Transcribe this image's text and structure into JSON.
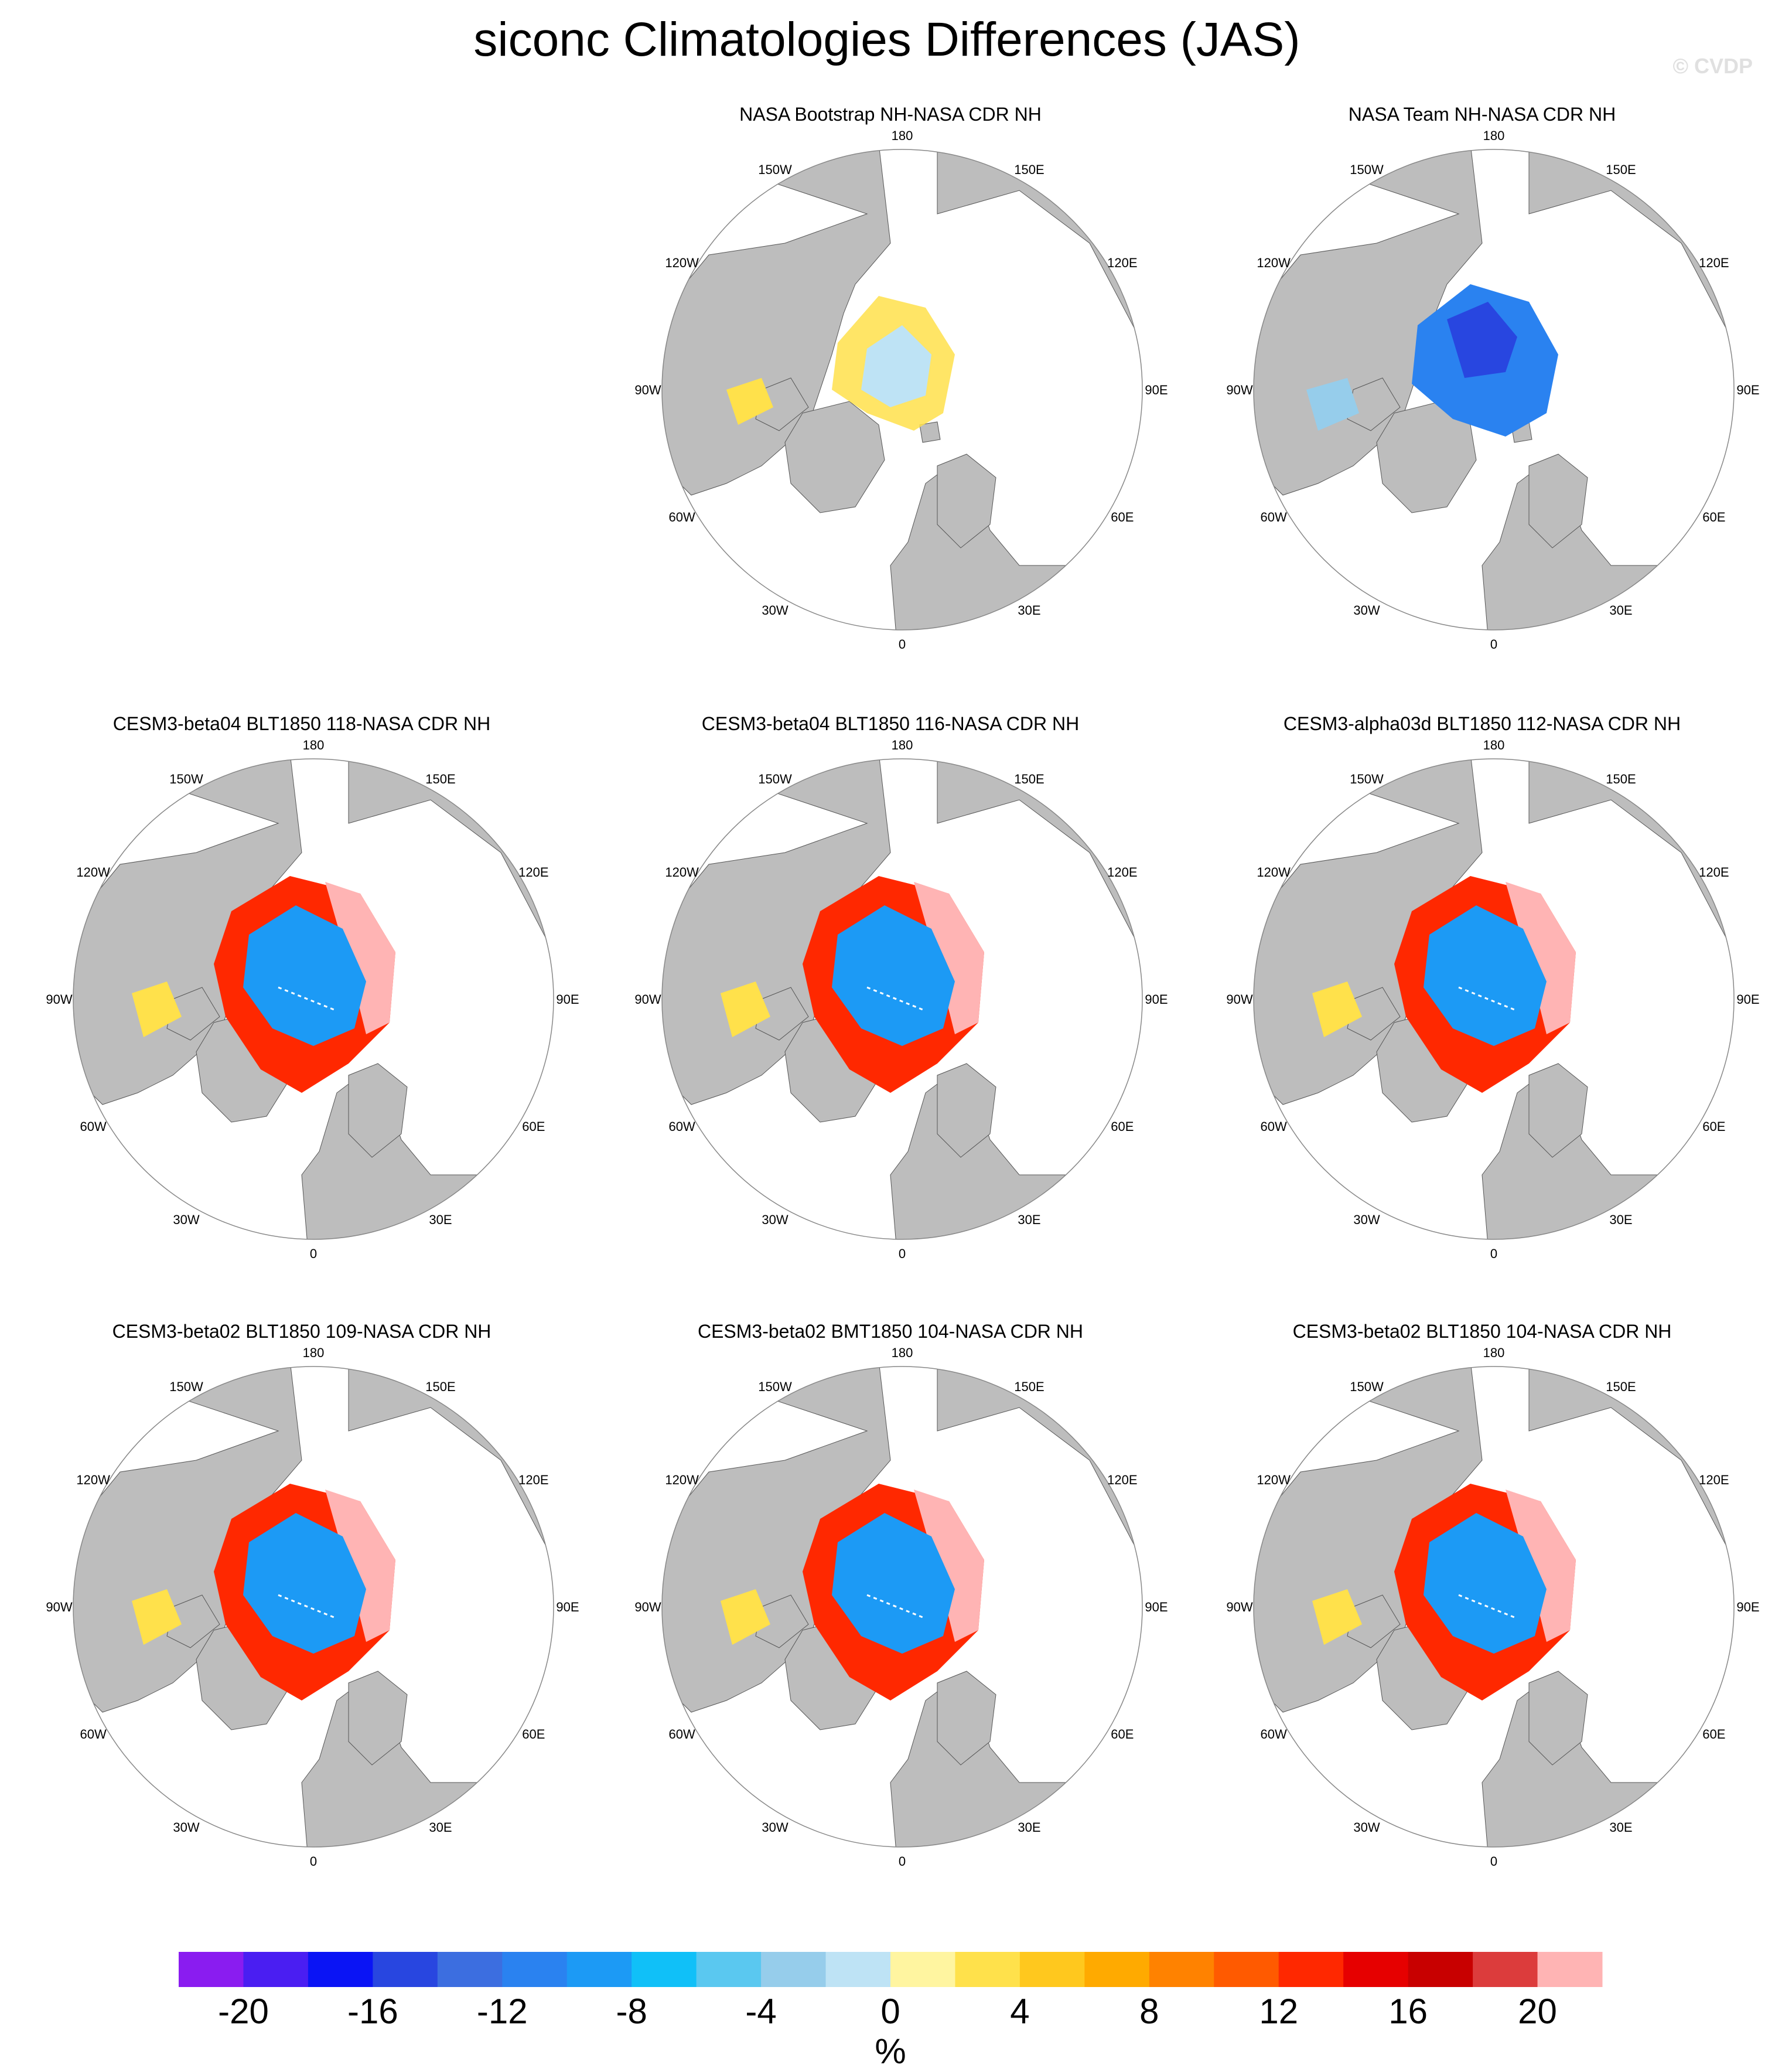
{
  "title": "siconc Climatologies Differences (JAS)",
  "watermark": "© CVDP",
  "panels": [
    {
      "title": "NASA Bootstrap NH-NASA CDR NH",
      "pattern": "bootstrap"
    },
    {
      "title": "NASA Team NH-NASA CDR NH",
      "pattern": "team"
    },
    {
      "title": "CESM3-beta04 BLT1850 118-NASA CDR NH",
      "pattern": "model"
    },
    {
      "title": "CESM3-beta04 BLT1850 116-NASA CDR NH",
      "pattern": "model"
    },
    {
      "title": "CESM3-alpha03d BLT1850 112-NASA CDR NH",
      "pattern": "model"
    },
    {
      "title": "CESM3-beta02 BLT1850 109-NASA CDR NH",
      "pattern": "model"
    },
    {
      "title": "CESM3-beta02 BMT1850 104-NASA CDR NH",
      "pattern": "model"
    },
    {
      "title": "CESM3-beta02 BLT1850 104-NASA CDR NH",
      "pattern": "model"
    }
  ],
  "longitude_labels": [
    "180",
    "150E",
    "120E",
    "90E",
    "60E",
    "30E",
    "0",
    "30W",
    "60W",
    "90W",
    "120W",
    "150W"
  ],
  "colorbar": {
    "colors": [
      "#8a1cf0",
      "#4a1ef2",
      "#0a14f5",
      "#2846e0",
      "#3c6ee0",
      "#2a82f0",
      "#1c9af5",
      "#10c0f8",
      "#5ac8f0",
      "#96cdeb",
      "#bee3f5",
      "#fff5a0",
      "#ffe14b",
      "#ffc81e",
      "#ffaa00",
      "#ff8200",
      "#ff5a00",
      "#ff2800",
      "#e60000",
      "#c80000",
      "#dc3c3c",
      "#ffb4b4"
    ],
    "labels": [
      "-20",
      "-16",
      "-12",
      "-8",
      "-4",
      "0",
      "4",
      "8",
      "12",
      "16",
      "20"
    ],
    "unit": "%"
  }
}
